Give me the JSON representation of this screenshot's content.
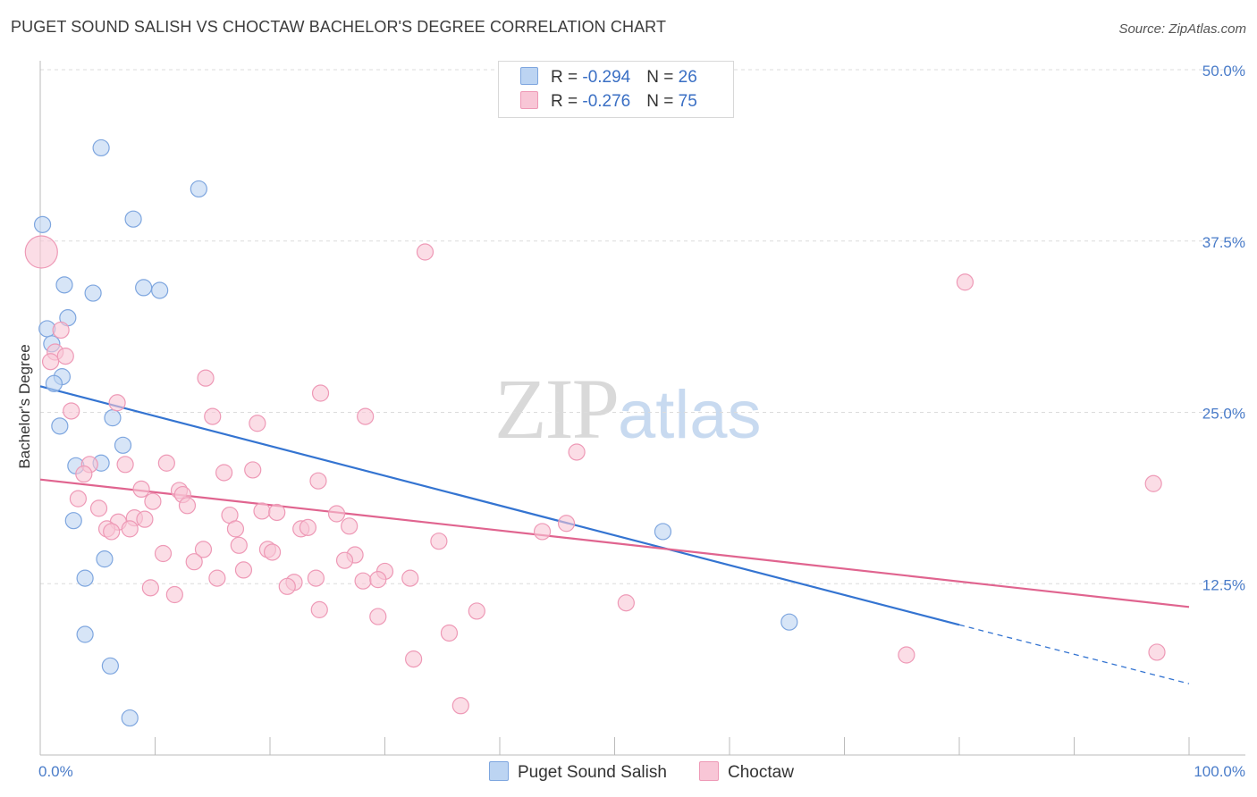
{
  "title": "PUGET SOUND SALISH VS CHOCTAW BACHELOR'S DEGREE CORRELATION CHART",
  "source": "Source: ZipAtlas.com",
  "watermark": {
    "zip": "ZIP",
    "atlas": "atlas"
  },
  "legend": {
    "series1": {
      "r_label": "R = ",
      "r_value": "-0.294",
      "n_label": "N = ",
      "n_value": "26"
    },
    "series2": {
      "r_label": "R = ",
      "r_value": "-0.276",
      "n_label": "N = ",
      "n_value": "75"
    }
  },
  "bottom_legend": {
    "series1": "Puget Sound Salish",
    "series2": "Choctaw"
  },
  "chart_data": {
    "type": "scatter",
    "title": "PUGET SOUND SALISH VS CHOCTAW BACHELOR'S DEGREE CORRELATION CHART",
    "xlabel": "",
    "ylabel": "Bachelor's Degree",
    "xlim": [
      0,
      100
    ],
    "ylim": [
      0,
      50
    ],
    "x_tick_labels": [
      "0.0%",
      "100.0%"
    ],
    "y_ticks": [
      12.5,
      25.0,
      37.5,
      50.0
    ],
    "y_tick_labels": [
      "12.5%",
      "25.0%",
      "37.5%",
      "50.0%"
    ],
    "grid": "horizontal dashed",
    "legend_position": "top-center",
    "colors": {
      "series1_fill": "#bcd4f2",
      "series1_stroke": "#7ea6df",
      "series1_line": "#3474d1",
      "series2_fill": "#f8c6d6",
      "series2_stroke": "#ee99b6",
      "series2_line": "#e0648f"
    },
    "series": [
      {
        "name": "Puget Sound Salish",
        "r": -0.294,
        "n": 26,
        "trend": {
          "x0": 0,
          "y0": 26.9,
          "x1": 80,
          "y1": 9.5,
          "dash_to_x": 100,
          "dash_to_y": 5.2
        },
        "points": [
          {
            "x": 5.3,
            "y": 44.3
          },
          {
            "x": 13.8,
            "y": 41.3
          },
          {
            "x": 8.1,
            "y": 39.1
          },
          {
            "x": 0.2,
            "y": 38.7
          },
          {
            "x": 2.1,
            "y": 34.3
          },
          {
            "x": 4.6,
            "y": 33.7
          },
          {
            "x": 9.0,
            "y": 34.1
          },
          {
            "x": 10.4,
            "y": 33.9
          },
          {
            "x": 2.4,
            "y": 31.9
          },
          {
            "x": 0.6,
            "y": 31.1
          },
          {
            "x": 1.0,
            "y": 30.0
          },
          {
            "x": 1.9,
            "y": 27.6
          },
          {
            "x": 1.2,
            "y": 27.1
          },
          {
            "x": 6.3,
            "y": 24.6
          },
          {
            "x": 1.7,
            "y": 24.0
          },
          {
            "x": 7.2,
            "y": 22.6
          },
          {
            "x": 3.1,
            "y": 21.1
          },
          {
            "x": 5.3,
            "y": 21.3
          },
          {
            "x": 2.9,
            "y": 17.1
          },
          {
            "x": 5.6,
            "y": 14.3
          },
          {
            "x": 3.9,
            "y": 12.9
          },
          {
            "x": 54.2,
            "y": 16.3
          },
          {
            "x": 3.9,
            "y": 8.8
          },
          {
            "x": 6.1,
            "y": 6.5
          },
          {
            "x": 65.2,
            "y": 9.7
          },
          {
            "x": 7.8,
            "y": 2.7
          }
        ]
      },
      {
        "name": "Choctaw",
        "r": -0.276,
        "n": 75,
        "trend": {
          "x0": 0,
          "y0": 20.1,
          "x1": 100,
          "y1": 10.8
        },
        "points": [
          {
            "x": 0.1,
            "y": 36.7,
            "big": true
          },
          {
            "x": 33.5,
            "y": 36.7
          },
          {
            "x": 80.5,
            "y": 34.5
          },
          {
            "x": 1.8,
            "y": 31.0
          },
          {
            "x": 1.3,
            "y": 29.4
          },
          {
            "x": 2.2,
            "y": 29.1
          },
          {
            "x": 0.9,
            "y": 28.7
          },
          {
            "x": 14.4,
            "y": 27.5
          },
          {
            "x": 24.4,
            "y": 26.4
          },
          {
            "x": 6.7,
            "y": 25.7
          },
          {
            "x": 2.7,
            "y": 25.1
          },
          {
            "x": 15.0,
            "y": 24.7
          },
          {
            "x": 28.3,
            "y": 24.7
          },
          {
            "x": 18.9,
            "y": 24.2
          },
          {
            "x": 46.7,
            "y": 22.1
          },
          {
            "x": 4.3,
            "y": 21.2
          },
          {
            "x": 7.4,
            "y": 21.2
          },
          {
            "x": 11.0,
            "y": 21.3
          },
          {
            "x": 3.8,
            "y": 20.5
          },
          {
            "x": 16.0,
            "y": 20.6
          },
          {
            "x": 18.5,
            "y": 20.8
          },
          {
            "x": 24.2,
            "y": 20.0
          },
          {
            "x": 96.9,
            "y": 19.8
          },
          {
            "x": 8.8,
            "y": 19.4
          },
          {
            "x": 12.1,
            "y": 19.3
          },
          {
            "x": 12.4,
            "y": 19.0
          },
          {
            "x": 3.3,
            "y": 18.7
          },
          {
            "x": 9.8,
            "y": 18.5
          },
          {
            "x": 12.8,
            "y": 18.2
          },
          {
            "x": 5.1,
            "y": 18.0
          },
          {
            "x": 19.3,
            "y": 17.8
          },
          {
            "x": 20.6,
            "y": 17.7
          },
          {
            "x": 16.5,
            "y": 17.5
          },
          {
            "x": 25.8,
            "y": 17.6
          },
          {
            "x": 8.2,
            "y": 17.3
          },
          {
            "x": 9.1,
            "y": 17.2
          },
          {
            "x": 6.8,
            "y": 17.0
          },
          {
            "x": 45.8,
            "y": 16.9
          },
          {
            "x": 26.9,
            "y": 16.7
          },
          {
            "x": 5.8,
            "y": 16.5
          },
          {
            "x": 7.8,
            "y": 16.5
          },
          {
            "x": 6.2,
            "y": 16.3
          },
          {
            "x": 17.0,
            "y": 16.5
          },
          {
            "x": 22.7,
            "y": 16.5
          },
          {
            "x": 23.3,
            "y": 16.6
          },
          {
            "x": 43.7,
            "y": 16.3
          },
          {
            "x": 34.7,
            "y": 15.6
          },
          {
            "x": 17.3,
            "y": 15.3
          },
          {
            "x": 14.2,
            "y": 15.0
          },
          {
            "x": 19.8,
            "y": 15.0
          },
          {
            "x": 20.2,
            "y": 14.8
          },
          {
            "x": 10.7,
            "y": 14.7
          },
          {
            "x": 27.4,
            "y": 14.6
          },
          {
            "x": 26.5,
            "y": 14.2
          },
          {
            "x": 13.4,
            "y": 14.1
          },
          {
            "x": 17.7,
            "y": 13.5
          },
          {
            "x": 30.0,
            "y": 13.4
          },
          {
            "x": 24.0,
            "y": 12.9
          },
          {
            "x": 32.2,
            "y": 12.9
          },
          {
            "x": 22.1,
            "y": 12.6
          },
          {
            "x": 15.4,
            "y": 12.9
          },
          {
            "x": 28.1,
            "y": 12.7
          },
          {
            "x": 29.4,
            "y": 12.8
          },
          {
            "x": 21.5,
            "y": 12.3
          },
          {
            "x": 9.6,
            "y": 12.2
          },
          {
            "x": 11.7,
            "y": 11.7
          },
          {
            "x": 51.0,
            "y": 11.1
          },
          {
            "x": 24.3,
            "y": 10.6
          },
          {
            "x": 38.0,
            "y": 10.5
          },
          {
            "x": 29.4,
            "y": 10.1
          },
          {
            "x": 35.6,
            "y": 8.9
          },
          {
            "x": 32.5,
            "y": 7.0
          },
          {
            "x": 75.4,
            "y": 7.3
          },
          {
            "x": 97.2,
            "y": 7.5
          },
          {
            "x": 36.6,
            "y": 3.6
          }
        ]
      }
    ]
  }
}
